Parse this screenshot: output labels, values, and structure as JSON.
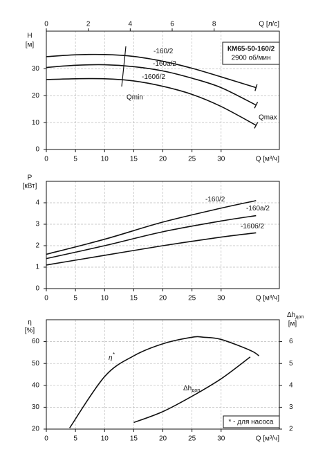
{
  "chart_data": [
    {
      "type": "line",
      "box": {
        "model": "КМ65-50-160/2",
        "speed": "2900 об/мин"
      },
      "xlabel": "Q [м³/ч]",
      "xlim": [
        0,
        40
      ],
      "xticks": [
        0,
        5,
        10,
        15,
        20,
        25,
        30
      ],
      "x2label": "Q [л/с]",
      "x2lim": [
        0,
        11.11
      ],
      "x2ticks": [
        0,
        2,
        4,
        6,
        8
      ],
      "ylabel": "H",
      "yunit": "[м]",
      "ylim": [
        0,
        44
      ],
      "yticks": [
        0,
        10,
        20,
        30
      ],
      "grid": true,
      "color": "#111111",
      "series": [
        {
          "name": "-160/2",
          "x": [
            0,
            5,
            10,
            15,
            20,
            25,
            30,
            36
          ],
          "values": [
            34.5,
            35.2,
            35.3,
            34.6,
            32.8,
            30.2,
            27,
            23
          ]
        },
        {
          "name": "-160а/2",
          "x": [
            0,
            5,
            10,
            15,
            20,
            25,
            30,
            36
          ],
          "values": [
            30.5,
            31.3,
            31.5,
            30.8,
            29.2,
            26.5,
            23,
            16.5
          ]
        },
        {
          "name": "-160б/2",
          "x": [
            0,
            5,
            10,
            15,
            20,
            25,
            30,
            36
          ],
          "values": [
            26,
            26.3,
            26.3,
            25.5,
            23.5,
            20.5,
            16,
            9
          ]
        }
      ],
      "annotations": {
        "qmin": "Qmin",
        "qmax": "Qmax"
      }
    },
    {
      "type": "line",
      "xlabel": "Q [м³/ч]",
      "xlim": [
        0,
        40
      ],
      "xticks": [
        0,
        5,
        10,
        15,
        20,
        25,
        30
      ],
      "ylabel": "P",
      "yunit": "[кВт]",
      "ylim": [
        0,
        5
      ],
      "yticks": [
        0,
        1,
        2,
        3,
        4
      ],
      "grid": true,
      "color": "#111111",
      "series": [
        {
          "name": "-160/2",
          "x": [
            0,
            10,
            20,
            30,
            36
          ],
          "values": [
            1.6,
            2.3,
            3.1,
            3.75,
            4.1
          ]
        },
        {
          "name": "-160а/2",
          "x": [
            0,
            10,
            20,
            30,
            36
          ],
          "values": [
            1.4,
            2.0,
            2.65,
            3.15,
            3.4
          ]
        },
        {
          "name": "-160б/2",
          "x": [
            0,
            10,
            20,
            30,
            36
          ],
          "values": [
            1.1,
            1.55,
            2.0,
            2.4,
            2.6
          ]
        }
      ]
    },
    {
      "type": "line",
      "xlabel": "Q [м³/ч]",
      "xlim": [
        0,
        40
      ],
      "xticks": [
        0,
        5,
        10,
        15,
        20,
        25,
        30
      ],
      "ylabel": "η",
      "yunit": "[%]",
      "ylim": [
        20,
        70
      ],
      "yticks": [
        20,
        30,
        40,
        50,
        60
      ],
      "y2label": {
        "main": "Δh",
        "sub": "доп"
      },
      "y2unit": "[м]",
      "y2lim": [
        2,
        7
      ],
      "y2ticks": [
        2,
        3,
        4,
        5,
        6
      ],
      "grid": true,
      "color": "#111111",
      "series": [
        {
          "name": "η",
          "name_sup": "*",
          "x": [
            4,
            10,
            15,
            20,
            25,
            27,
            30,
            35,
            36.5
          ],
          "values": [
            20.5,
            44,
            53.5,
            59,
            62,
            62,
            61,
            56,
            53.5
          ]
        },
        {
          "name": "Δh",
          "name_sub": "доп",
          "axis": "y2",
          "x": [
            15,
            20,
            25,
            30,
            35
          ],
          "values": [
            2.3,
            2.8,
            3.5,
            4.3,
            5.3
          ]
        }
      ],
      "note": "* - для насоса"
    }
  ]
}
